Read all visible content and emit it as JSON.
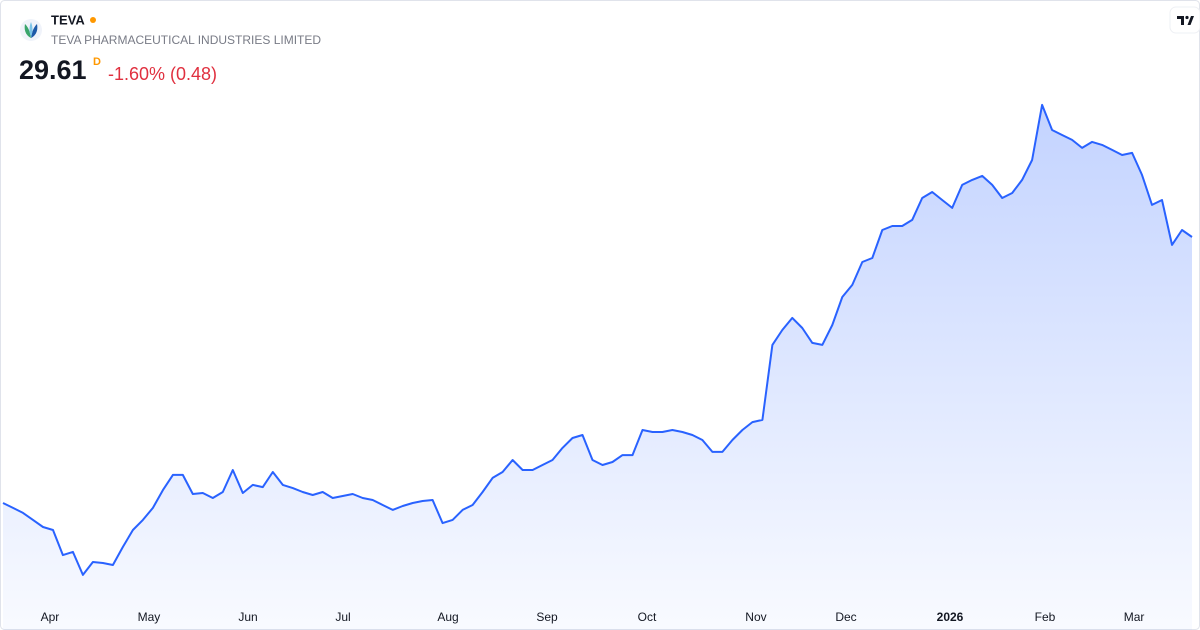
{
  "chart_data": {
    "type": "area",
    "title": "TEVA",
    "subtitle": "TEVA PHARMACEUTICAL INDUSTRIES LIMITED",
    "price": 29.61,
    "interval": "D",
    "change": "-1.60% (0.48)",
    "color": "#2962ff",
    "change_color": "#e0303f",
    "values": [
      16.23,
      15.98,
      15.73,
      15.38,
      15.02,
      14.87,
      13.61,
      13.77,
      12.61,
      13.26,
      13.21,
      13.11,
      14.02,
      14.87,
      15.38,
      15.98,
      16.88,
      17.64,
      17.64,
      16.68,
      16.73,
      16.48,
      16.78,
      17.89,
      16.73,
      17.14,
      17.03,
      17.79,
      17.14,
      16.98,
      16.78,
      16.63,
      16.78,
      16.48,
      16.58,
      16.68,
      16.48,
      16.38,
      16.13,
      15.88,
      16.08,
      16.23,
      16.33,
      16.38,
      15.22,
      15.38,
      15.88,
      16.13,
      16.78,
      17.49,
      17.79,
      18.39,
      17.89,
      17.89,
      18.14,
      18.39,
      19.0,
      19.5,
      19.65,
      18.39,
      18.14,
      18.29,
      18.64,
      18.64,
      19.9,
      19.8,
      19.8,
      19.9,
      19.8,
      19.65,
      19.4,
      18.8,
      18.8,
      19.4,
      19.9,
      20.3,
      20.41,
      24.18,
      24.93,
      25.54,
      25.03,
      24.28,
      24.18,
      25.18,
      26.59,
      27.2,
      28.35,
      28.55,
      29.96,
      30.16,
      30.16,
      30.47,
      31.57,
      31.87,
      31.47,
      31.07,
      32.23,
      32.48,
      32.68,
      32.23,
      31.57,
      31.82,
      32.48,
      33.48,
      36.25,
      34.99,
      34.74,
      34.49,
      34.09,
      34.39,
      34.24,
      33.99,
      33.73,
      33.84,
      32.73,
      31.22,
      31.47,
      29.21,
      29.96,
      29.61
    ],
    "xlim": [
      0,
      119
    ],
    "ylim": [
      11.35,
      36.75
    ],
    "xticks": [
      {
        "value": 4.7,
        "label": "Apr"
      },
      {
        "value": 14.61,
        "label": "May"
      },
      {
        "value": 24.52,
        "label": "Jun"
      },
      {
        "value": 34.03,
        "label": "Jul"
      },
      {
        "value": 44.54,
        "label": "Aug"
      },
      {
        "value": 54.45,
        "label": "Sep"
      },
      {
        "value": 64.45,
        "label": "Oct"
      },
      {
        "value": 75.36,
        "label": "Nov"
      },
      {
        "value": 84.37,
        "label": "Dec"
      },
      {
        "value": 94.78,
        "label": "2026",
        "bold": true
      },
      {
        "value": 104.29,
        "label": "Feb"
      },
      {
        "value": 113.2,
        "label": "Mar"
      }
    ]
  }
}
